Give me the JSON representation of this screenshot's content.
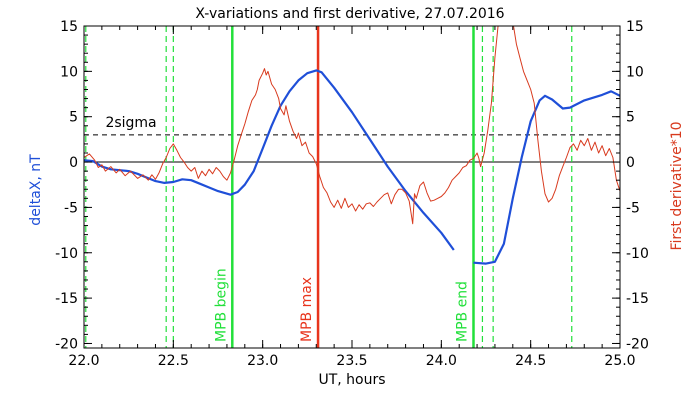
{
  "colors": {
    "deltaX": "#1f4fd8",
    "derivative": "#d83a1e",
    "mpb": "#22e03a",
    "max": "#e8341c",
    "axis": "#000000"
  },
  "chart_data": {
    "type": "line",
    "title": "X-variations and first derivative, 27.07.2016",
    "xlabel": "UT, hours",
    "ylabel": "deltaX, nT",
    "ylabel_right": "First derivative*10",
    "xlim": [
      22.0,
      25.0
    ],
    "ylim": [
      -20.5,
      15
    ],
    "ylim_right": [
      -20.5,
      15
    ],
    "xticks": [
      "22.0",
      "22.5",
      "23.0",
      "23.5",
      "24.0",
      "24.5",
      "25.0"
    ],
    "xtick_values": [
      22.0,
      22.5,
      23.0,
      23.5,
      24.0,
      24.5,
      25.0
    ],
    "yticks": [
      "15",
      "10",
      "5",
      "0",
      "-5",
      "-10",
      "-15",
      "-20"
    ],
    "ytick_values": [
      15,
      10,
      5,
      0,
      -5,
      -10,
      -15,
      -20
    ],
    "grid": false,
    "series": [
      {
        "key": "deltaX",
        "axis": "left",
        "color": "#1f4fd8",
        "points": [
          [
            22.0,
            0.2
          ],
          [
            22.05,
            0.1
          ],
          [
            22.1,
            -0.5
          ],
          [
            22.15,
            -0.8
          ],
          [
            22.2,
            -0.9
          ],
          [
            22.25,
            -1.0
          ],
          [
            22.3,
            -1.3
          ],
          [
            22.35,
            -1.7
          ],
          [
            22.4,
            -2.1
          ],
          [
            22.45,
            -2.3
          ],
          [
            22.5,
            -2.2
          ],
          [
            22.55,
            -1.9
          ],
          [
            22.6,
            -2.0
          ],
          [
            22.65,
            -2.4
          ],
          [
            22.7,
            -2.8
          ],
          [
            22.75,
            -3.2
          ],
          [
            22.82,
            -3.6
          ],
          [
            22.86,
            -3.3
          ],
          [
            22.9,
            -2.5
          ],
          [
            22.95,
            -1.0
          ],
          [
            23.0,
            1.5
          ],
          [
            23.05,
            4.0
          ],
          [
            23.1,
            6.2
          ],
          [
            23.15,
            7.8
          ],
          [
            23.2,
            9.0
          ],
          [
            23.25,
            9.8
          ],
          [
            23.3,
            10.1
          ],
          [
            23.33,
            9.9
          ],
          [
            23.4,
            8.2
          ],
          [
            23.5,
            5.5
          ],
          [
            23.6,
            2.5
          ],
          [
            23.7,
            -0.5
          ],
          [
            23.8,
            -3.2
          ],
          [
            23.9,
            -5.6
          ],
          [
            24.0,
            -7.8
          ],
          [
            24.07,
            -9.7
          ]
        ]
      },
      {
        "key": "deltaX_after_gap",
        "axis": "left",
        "color": "#1f4fd8",
        "points": [
          [
            24.18,
            -11.1
          ],
          [
            24.25,
            -11.2
          ],
          [
            24.3,
            -11.0
          ],
          [
            24.35,
            -9.0
          ],
          [
            24.4,
            -4.0
          ],
          [
            24.45,
            0.5
          ],
          [
            24.5,
            4.5
          ],
          [
            24.55,
            6.8
          ],
          [
            24.58,
            7.3
          ],
          [
            24.62,
            6.9
          ],
          [
            24.68,
            5.9
          ],
          [
            24.72,
            6.0
          ],
          [
            24.8,
            6.8
          ],
          [
            24.9,
            7.4
          ],
          [
            24.95,
            7.8
          ],
          [
            25.0,
            7.3
          ]
        ]
      },
      {
        "key": "derivative",
        "axis": "right",
        "color": "#d83a1e",
        "points": [
          [
            22.0,
            0.5
          ],
          [
            22.03,
            0.9
          ],
          [
            22.06,
            0.2
          ],
          [
            22.08,
            -0.6
          ],
          [
            22.1,
            -0.3
          ],
          [
            22.12,
            -1.0
          ],
          [
            22.15,
            -0.5
          ],
          [
            22.18,
            -1.2
          ],
          [
            22.2,
            -0.8
          ],
          [
            22.23,
            -1.5
          ],
          [
            22.26,
            -1.0
          ],
          [
            22.3,
            -1.8
          ],
          [
            22.33,
            -1.4
          ],
          [
            22.36,
            -2.0
          ],
          [
            22.38,
            -1.4
          ],
          [
            22.4,
            -1.9
          ],
          [
            22.42,
            -1.2
          ],
          [
            22.44,
            -0.2
          ],
          [
            22.46,
            0.5
          ],
          [
            22.48,
            1.5
          ],
          [
            22.5,
            2.0
          ],
          [
            22.52,
            1.3
          ],
          [
            22.54,
            0.5
          ],
          [
            22.56,
            0.0
          ],
          [
            22.58,
            -0.6
          ],
          [
            22.6,
            -1.0
          ],
          [
            22.62,
            -0.6
          ],
          [
            22.64,
            -1.8
          ],
          [
            22.66,
            -1.0
          ],
          [
            22.68,
            -1.5
          ],
          [
            22.7,
            -0.8
          ],
          [
            22.72,
            -1.3
          ],
          [
            22.74,
            -0.6
          ],
          [
            22.76,
            -1.0
          ],
          [
            22.78,
            -1.6
          ],
          [
            22.8,
            -2.0
          ],
          [
            22.82,
            -1.2
          ],
          [
            22.84,
            0.2
          ],
          [
            22.86,
            1.8
          ],
          [
            22.88,
            3.0
          ],
          [
            22.9,
            4.2
          ],
          [
            22.92,
            5.6
          ],
          [
            22.94,
            6.8
          ],
          [
            22.96,
            7.4
          ],
          [
            22.97,
            8.0
          ],
          [
            22.98,
            9.0
          ],
          [
            23.0,
            9.8
          ],
          [
            23.01,
            10.3
          ],
          [
            23.02,
            9.6
          ],
          [
            23.03,
            10.0
          ],
          [
            23.05,
            8.6
          ],
          [
            23.07,
            8.0
          ],
          [
            23.09,
            7.0
          ],
          [
            23.1,
            5.9
          ],
          [
            23.12,
            5.2
          ],
          [
            23.13,
            6.2
          ],
          [
            23.15,
            4.5
          ],
          [
            23.17,
            3.4
          ],
          [
            23.19,
            2.6
          ],
          [
            23.2,
            3.2
          ],
          [
            23.22,
            1.8
          ],
          [
            23.24,
            2.2
          ],
          [
            23.26,
            1.0
          ],
          [
            23.28,
            0.6
          ],
          [
            23.3,
            -0.2
          ],
          [
            23.32,
            -1.6
          ],
          [
            23.34,
            -2.8
          ],
          [
            23.36,
            -3.4
          ],
          [
            23.38,
            -4.4
          ],
          [
            23.4,
            -5.0
          ],
          [
            23.42,
            -4.2
          ],
          [
            23.44,
            -5.1
          ],
          [
            23.46,
            -4.0
          ],
          [
            23.48,
            -5.0
          ],
          [
            23.5,
            -4.6
          ],
          [
            23.52,
            -5.4
          ],
          [
            23.54,
            -4.7
          ],
          [
            23.56,
            -5.2
          ],
          [
            23.58,
            -4.6
          ],
          [
            23.6,
            -4.5
          ],
          [
            23.62,
            -4.9
          ],
          [
            23.64,
            -4.4
          ],
          [
            23.66,
            -4.0
          ],
          [
            23.68,
            -3.6
          ],
          [
            23.7,
            -3.4
          ],
          [
            23.72,
            -4.6
          ],
          [
            23.74,
            -3.6
          ],
          [
            23.76,
            -3.0
          ],
          [
            23.78,
            -3.0
          ],
          [
            23.8,
            -3.4
          ],
          [
            23.82,
            -4.3
          ],
          [
            23.84,
            -6.8
          ],
          [
            23.85,
            -3.5
          ],
          [
            23.86,
            -4.0
          ],
          [
            23.88,
            -2.6
          ],
          [
            23.9,
            -2.2
          ],
          [
            23.92,
            -3.4
          ],
          [
            23.94,
            -4.3
          ],
          [
            23.96,
            -4.2
          ],
          [
            23.98,
            -4.0
          ],
          [
            24.0,
            -3.8
          ],
          [
            24.02,
            -3.4
          ],
          [
            24.04,
            -2.8
          ],
          [
            24.06,
            -2.0
          ],
          [
            24.08,
            -1.6
          ],
          [
            24.1,
            -1.2
          ],
          [
            24.12,
            -0.6
          ],
          [
            24.14,
            -0.4
          ],
          [
            24.16,
            0.2
          ],
          [
            24.18,
            0.4
          ],
          [
            24.2,
            1.0
          ],
          [
            24.21,
            0.4
          ],
          [
            24.22,
            -0.5
          ],
          [
            24.24,
            1.0
          ],
          [
            24.26,
            3.5
          ],
          [
            24.28,
            6.5
          ],
          [
            24.3,
            11.5
          ],
          [
            24.32,
            15.5
          ],
          [
            24.4,
            15.5
          ],
          [
            24.42,
            13.0
          ],
          [
            24.44,
            11.5
          ],
          [
            24.46,
            10.0
          ],
          [
            24.48,
            9.0
          ],
          [
            24.5,
            8.0
          ],
          [
            24.52,
            6.5
          ],
          [
            24.54,
            2.5
          ],
          [
            24.56,
            -1.0
          ],
          [
            24.58,
            -3.5
          ],
          [
            24.6,
            -4.4
          ],
          [
            24.62,
            -4.0
          ],
          [
            24.64,
            -3.0
          ],
          [
            24.66,
            -1.5
          ],
          [
            24.68,
            -0.5
          ],
          [
            24.7,
            0.5
          ],
          [
            24.72,
            1.6
          ],
          [
            24.74,
            2.0
          ],
          [
            24.76,
            1.3
          ],
          [
            24.78,
            2.4
          ],
          [
            24.8,
            1.8
          ],
          [
            24.82,
            2.6
          ],
          [
            24.84,
            1.3
          ],
          [
            24.86,
            2.2
          ],
          [
            24.88,
            1.0
          ],
          [
            24.9,
            1.8
          ],
          [
            24.92,
            0.7
          ],
          [
            24.94,
            1.5
          ],
          [
            24.96,
            0.5
          ],
          [
            24.98,
            -2.0
          ],
          [
            25.0,
            -3.2
          ]
        ]
      }
    ],
    "reference_lines": {
      "zero": 0,
      "sigma": 3.0,
      "sigma_label": "2sigma",
      "solid_vertical": [
        {
          "x": 22.83,
          "label": "MPB begin",
          "color": "#22e03a"
        },
        {
          "x": 23.31,
          "label": "MPB max",
          "color": "#e8341c"
        },
        {
          "x": 24.18,
          "label": "MPB end",
          "color": "#22e03a"
        }
      ],
      "dashed_vertical": [
        22.01,
        22.46,
        22.5,
        24.23,
        24.29,
        24.73
      ]
    }
  }
}
